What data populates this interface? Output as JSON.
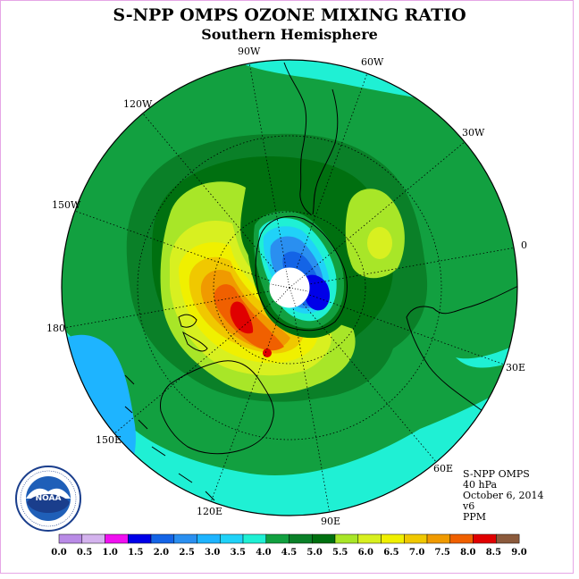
{
  "title": "S-NPP OMPS OZONE MIXING RATIO",
  "subtitle": "Southern Hemisphere",
  "info": {
    "instrument": "S-NPP OMPS",
    "level": "40 hPa",
    "date": "October 6, 2014",
    "version": "v6",
    "units": "PPM"
  },
  "longitude_labels": [
    {
      "key": "lon-90w",
      "text": "90W"
    },
    {
      "key": "lon-60w",
      "text": "60W"
    },
    {
      "key": "lon-30w",
      "text": "30W"
    },
    {
      "key": "lon-0",
      "text": "0"
    },
    {
      "key": "lon-30e",
      "text": "30E"
    },
    {
      "key": "lon-60e",
      "text": "60E"
    },
    {
      "key": "lon-90e",
      "text": "90E"
    },
    {
      "key": "lon-120e",
      "text": "120E"
    },
    {
      "key": "lon-150e",
      "text": "150E"
    },
    {
      "key": "lon-180",
      "text": "180"
    },
    {
      "key": "lon-150w",
      "text": "150W"
    },
    {
      "key": "lon-120w",
      "text": "120W"
    }
  ],
  "colorbar": {
    "ticks": [
      "0.0",
      "0.5",
      "1.0",
      "1.5",
      "2.0",
      "2.5",
      "3.0",
      "3.5",
      "4.0",
      "4.5",
      "5.0",
      "5.5",
      "6.0",
      "6.5",
      "7.0",
      "7.5",
      "8.0",
      "8.5",
      "9.0"
    ],
    "colors": [
      "#b98be6",
      "#d4b3ee",
      "#f010f0",
      "#0000e8",
      "#1464e6",
      "#2a8ff0",
      "#1eb4ff",
      "#20d2f8",
      "#1ff0d4",
      "#12a040",
      "#0a8028",
      "#007010",
      "#a8e628",
      "#d8f020",
      "#f0f000",
      "#f0c800",
      "#f09a00",
      "#f06000",
      "#e00000",
      "#8b5a3c"
    ]
  },
  "colors": {
    "frame": "#e6a6e6",
    "map_background": "#12a040"
  },
  "logo": {
    "text": "NOAA",
    "ring_text": "NATIONAL OCEANIC AND ATMOSPHERIC ADMINISTRATION · U.S. DEPARTMENT OF COMMERCE"
  }
}
